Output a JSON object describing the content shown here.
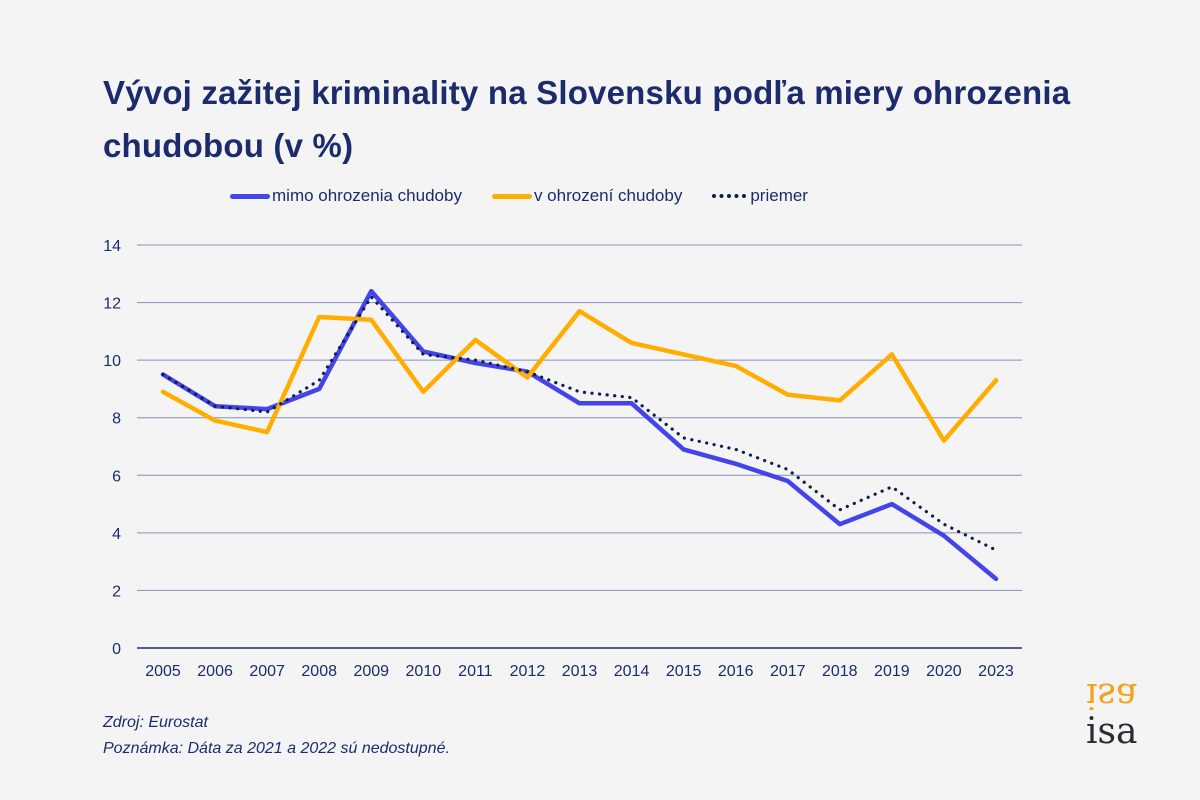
{
  "chart_data": {
    "type": "line",
    "title": "Vývoj zažitej kriminality na Slovensku podľa miery ohrozenia chudobou (v %)",
    "xlabel": "",
    "ylabel": "",
    "ylim": [
      0,
      14
    ],
    "yticks": [
      0,
      2,
      4,
      6,
      8,
      10,
      12,
      14
    ],
    "grid": true,
    "legend_position": "top",
    "categories": [
      "2005",
      "2006",
      "2007",
      "2008",
      "2009",
      "2010",
      "2011",
      "2012",
      "2013",
      "2014",
      "2015",
      "2016",
      "2017",
      "2018",
      "2019",
      "2020",
      "2023"
    ],
    "series": [
      {
        "name": "mimo ohrozenia chudoby",
        "color": "#4444e8",
        "style": "solid",
        "values": [
          9.5,
          8.4,
          8.3,
          9.0,
          12.4,
          10.3,
          9.9,
          9.6,
          8.5,
          8.5,
          6.9,
          6.4,
          5.8,
          4.3,
          5.0,
          3.9,
          2.4
        ]
      },
      {
        "name": "v ohrození chudoby",
        "color": "#ffad00",
        "style": "solid",
        "values": [
          8.9,
          7.9,
          7.5,
          11.5,
          11.4,
          8.9,
          10.7,
          9.4,
          11.7,
          10.6,
          10.2,
          9.8,
          8.8,
          8.6,
          10.2,
          7.2,
          9.3
        ]
      },
      {
        "name": "priemer",
        "color": "#0e1f4d",
        "style": "dotted",
        "values": [
          9.5,
          8.4,
          8.2,
          9.3,
          12.2,
          10.2,
          10.0,
          9.6,
          8.9,
          8.7,
          7.3,
          6.9,
          6.2,
          4.8,
          5.6,
          4.3,
          3.4
        ]
      }
    ]
  },
  "footer": {
    "source": "Zdroj: Eurostat",
    "note": "Poznámka: Dáta za 2021 a 2022 sú nedostupné."
  },
  "logo": {
    "text": "isa",
    "accent_color": "#f5a11c"
  }
}
